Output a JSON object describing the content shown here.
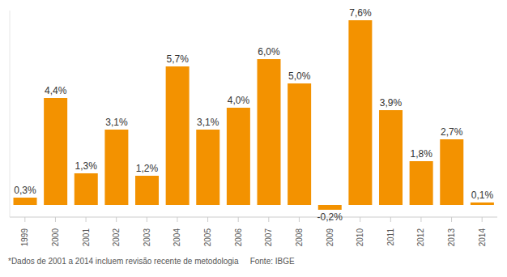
{
  "chart_data": {
    "type": "bar",
    "categories": [
      "1999",
      "2000",
      "2001",
      "2002",
      "2003",
      "2004",
      "2005",
      "2006",
      "2007",
      "2008",
      "2009",
      "2010",
      "2011",
      "2012",
      "2013",
      "2014"
    ],
    "values": [
      0.3,
      4.4,
      1.3,
      3.1,
      1.2,
      5.7,
      3.1,
      4.0,
      6.0,
      5.0,
      -0.2,
      7.6,
      3.9,
      1.8,
      2.7,
      0.1
    ],
    "value_labels": [
      "0,3%",
      "4,4%",
      "1,3%",
      "3,1%",
      "1,2%",
      "5,7%",
      "3,1%",
      "4,0%",
      "6,0%",
      "5,0%",
      "-0,2%",
      "7,6%",
      "3,9%",
      "1,8%",
      "2,7%",
      "0,1%"
    ],
    "color": "#f39200",
    "ylim": [
      -0.5,
      8
    ],
    "data_labels": true,
    "tick_labels": "x",
    "grid": false,
    "annotations": [
      "*Dados de 2001 a 2014 incluem revisão recente de metodologia",
      "Fonte: IBGE"
    ]
  }
}
